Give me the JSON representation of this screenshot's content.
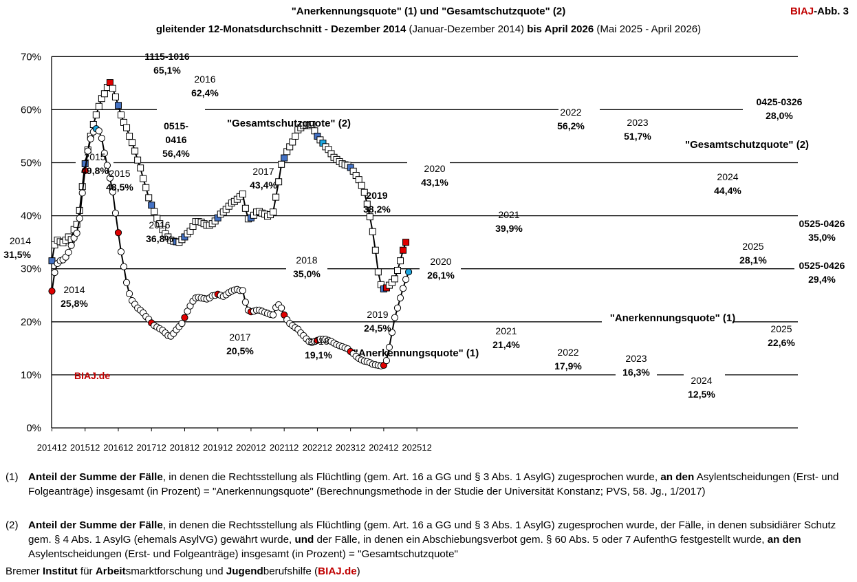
{
  "header": {
    "title_line1": "\"Anerkennungsquote\" (1) und \"Gesamtschutzquote\" (2)",
    "title_line2_part1": "gleitender 12-Monatsdurchschnitt - Dezember 2014",
    "title_line2_part2": " (Januar-Dezember 2014) ",
    "title_line2_part3": "bis April 2026",
    "title_line2_part4": " (Mai 2025 - April 2026)",
    "tag_red": "BIAJ",
    "tag_rest": "-Abb. 3"
  },
  "colors": {
    "gesamt_marker": "#4472c4",
    "anerkennung_marker": "#e00000",
    "highlight_cyan": "#1ea7e0",
    "brand_red": "#c00000"
  },
  "chart_data": {
    "type": "line",
    "y_axis": {
      "min": 0,
      "max": 70,
      "ticks": [
        "0%",
        "10%",
        "20%",
        "30%",
        "40%",
        "50%",
        "60%",
        "70%"
      ]
    },
    "x_axis": {
      "tick_labels": [
        "201412",
        "201512",
        "201612",
        "201712",
        "201812",
        "201912",
        "202012",
        "202112",
        "202212",
        "202312",
        "202412",
        "202512"
      ],
      "first_month": "201412",
      "last_month": "202604"
    },
    "watermark": "BIAJ.de",
    "series": [
      {
        "name": "\"Gesamtschutzquote\" (2)",
        "marker": "square",
        "values": [
          31.5,
          34.5,
          35.4,
          35.1,
          34.9,
          35.4,
          36.0,
          35.5,
          37.4,
          38.4,
          41.0,
          45.5,
          49.8,
          52.4,
          55.0,
          57.2,
          59.0,
          60.6,
          62.1,
          63.0,
          64.2,
          65.1,
          64.0,
          62.4,
          60.8,
          59.0,
          57.6,
          56.6,
          55.0,
          53.8,
          52.2,
          50.5,
          49.0,
          47.0,
          45.3,
          43.4,
          42.0,
          40.8,
          39.5,
          38.5,
          37.4,
          36.6,
          36.0,
          35.4,
          35.2,
          35.1,
          35.0,
          35.5,
          36.0,
          36.6,
          37.1,
          38.0,
          38.9,
          38.9,
          38.8,
          38.5,
          38.2,
          38.2,
          38.5,
          39.0,
          39.6,
          40.3,
          40.7,
          41.2,
          41.8,
          42.4,
          42.7,
          43.1,
          43.6,
          44.1,
          41.4,
          39.4,
          39.6,
          40.1,
          40.7,
          40.8,
          40.5,
          40.3,
          39.9,
          40.2,
          40.7,
          43.5,
          46.4,
          49.7,
          50.9,
          52.1,
          53.0,
          53.9,
          55.0,
          56.2,
          56.6,
          57.0,
          57.1,
          57.0,
          57.2,
          56.0,
          55.0,
          54.3,
          53.7,
          53.0,
          52.5,
          51.7,
          51.0,
          50.6,
          50.2,
          49.8,
          49.6,
          49.5,
          49.1,
          48.4,
          47.6,
          46.8,
          45.7,
          44.4,
          42.2,
          39.8,
          37.0,
          33.5,
          29.4,
          27.0,
          26.2,
          26.4,
          26.9,
          27.4,
          28.1,
          29.7,
          31.5,
          33.5,
          35.0
        ],
        "labels": [
          {
            "text": "2014",
            "sub": "31,5%"
          },
          {
            "text": "2015",
            "sub": "49,8%"
          },
          {
            "text": "1115-1016",
            "sub": "65,1%"
          },
          {
            "text": "2016",
            "sub": "62,4%"
          },
          {
            "text": "2017",
            "sub": "43,4%"
          },
          {
            "text": "2018",
            "sub": "35,0%"
          },
          {
            "text": "2019",
            "sub": "38,2%"
          },
          {
            "text": "2020",
            "sub": "43,1%"
          },
          {
            "text": "2021",
            "sub": "39,9%"
          },
          {
            "text": "2022",
            "sub": "56,2%"
          },
          {
            "text": "2023",
            "sub": "51,7%"
          },
          {
            "text": "2024",
            "sub": "44,4%"
          },
          {
            "text": "2025",
            "sub": "28,1%"
          },
          {
            "text": "0425-0326",
            "sub": "28,0%"
          },
          {
            "text": "0525-0426",
            "sub": "35,0%"
          }
        ]
      },
      {
        "name": "\"Anerkennungsquote\" (1)",
        "marker": "circle",
        "values": [
          25.8,
          29.3,
          31.0,
          31.5,
          31.7,
          32.2,
          33.1,
          34.4,
          35.8,
          36.7,
          39.5,
          44.3,
          48.5,
          52.2,
          54.5,
          55.8,
          56.4,
          56.0,
          54.6,
          51.8,
          49.5,
          47.1,
          44.5,
          40.5,
          36.8,
          33.2,
          30.4,
          27.4,
          25.3,
          24.0,
          23.3,
          22.6,
          22.2,
          21.7,
          21.0,
          20.5,
          19.8,
          19.3,
          19.0,
          18.7,
          18.4,
          17.9,
          17.4,
          17.3,
          17.8,
          18.5,
          19.1,
          19.7,
          20.8,
          22.0,
          23.0,
          23.9,
          24.5,
          24.6,
          24.5,
          24.4,
          24.3,
          24.5,
          24.9,
          25.0,
          25.2,
          25.0,
          24.8,
          25.1,
          25.5,
          25.8,
          26.0,
          26.1,
          25.9,
          25.9,
          23.7,
          22.2,
          21.9,
          22.0,
          22.2,
          22.2,
          22.0,
          21.8,
          21.6,
          21.4,
          21.3,
          22.7,
          23.2,
          22.6,
          21.3,
          20.4,
          19.7,
          19.3,
          18.9,
          18.6,
          17.9,
          17.4,
          16.8,
          16.3,
          16.1,
          16.3,
          16.5,
          16.7,
          16.7,
          16.7,
          16.5,
          16.3,
          16.0,
          15.7,
          15.5,
          15.3,
          15.1,
          14.9,
          14.4,
          14.0,
          13.5,
          13.1,
          12.8,
          12.6,
          12.5,
          12.3,
          12.0,
          11.9,
          11.8,
          11.7,
          11.8,
          12.7,
          15.2,
          18.0,
          20.8,
          22.6,
          24.5,
          26.3,
          28.0,
          29.4
        ],
        "labels": [
          {
            "text": "2014",
            "sub": "25,8%"
          },
          {
            "text": "2015",
            "sub": "48,5%"
          },
          {
            "text": "0515-",
            "sub": "0416"
          },
          {
            "text": "56,4%"
          },
          {
            "text": "2016",
            "sub": "36,8%"
          },
          {
            "text": "2017",
            "sub": "20,5%"
          },
          {
            "text": "2018",
            "sub": "19,1%"
          },
          {
            "text": "2019",
            "sub": "24,5%"
          },
          {
            "text": "2020",
            "sub": "26,1%"
          },
          {
            "text": "2021",
            "sub": "21,4%"
          },
          {
            "text": "2022",
            "sub": "17,9%"
          },
          {
            "text": "2023",
            "sub": "16,3%"
          },
          {
            "text": "2024",
            "sub": "12,5%"
          },
          {
            "text": "2025",
            "sub": "22,6%"
          },
          {
            "text": "0525-0426",
            "sub": "29,4%"
          }
        ]
      }
    ],
    "series_labels": [
      "\"Gesamtschutzquote\" (2)",
      "\"Gesamtschutzquote\" (2)",
      "\"Anerkennungsquote\" (1)",
      "\"Anerkennungsquote\" (1)"
    ]
  },
  "footnotes": [
    {
      "num": "(1)",
      "b1": "Anteil der Summe der Fälle",
      "t1": ", in denen die Rechtsstellung als Flüchtling (gem. Art. 16 a GG und § 3 Abs. 1 AsylG) zugesprochen wurde, ",
      "b2": "an den",
      "t2": " Asylentscheidungen (Erst- und Folgeanträge) insgesamt (in Prozent) = \"Anerkennungsquote\" (Berechnungsmethode in der Studie der Universität Konstanz; PVS, 58. Jg., 1/2017)"
    },
    {
      "num": "(2)",
      "b1": "Anteil der Summe der Fälle",
      "t1": ", in denen die Rechtsstellung als Flüchtling (gem. Art. 16 a GG und § 3 Abs. 1 AsylG) zugesprochen wurde, der Fälle, in denen subsidiärer Schutz gem. § 4 Abs. 1 AsylG (ehemals AsylVG) gewährt wurde, ",
      "b2": "und",
      "t2": " der Fälle, in denen ein Abschiebungsverbot gem. § 60 Abs. 5 oder 7 AufenthG festgestellt wurde, ",
      "b3": "an den",
      "t3": " Asylentscheidungen (Erst- und Folgeanträge) insgesamt (in Prozent) = \"Gesamtschutzquote\""
    }
  ],
  "credit": {
    "p1": "Bremer ",
    "b1": "Institut",
    "p2": " für ",
    "b2": "Arbeit",
    "p3": "smarktforschung und ",
    "b3": "Jugend",
    "p4": "berufshilfe (",
    "red": "BIAJ.de",
    "p5": ")"
  }
}
